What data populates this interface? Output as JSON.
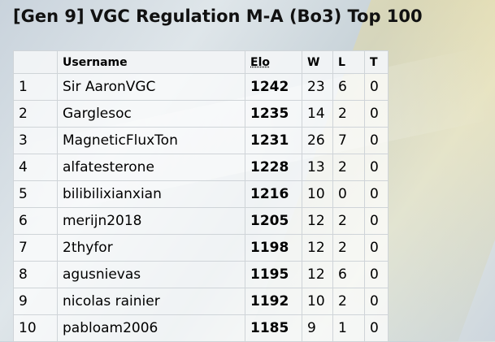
{
  "header": {
    "title": "[Gen 9] VGC Regulation M-A (Bo3) Top 100"
  },
  "table": {
    "columns": [
      "Username",
      "Elo",
      "W",
      "L",
      "T"
    ],
    "rows": [
      [
        1,
        "Sir AaronVGC",
        1242,
        23,
        6,
        0
      ],
      [
        2,
        "Garglesoc",
        1235,
        14,
        2,
        0
      ],
      [
        3,
        "MagneticFluxTon",
        1231,
        26,
        7,
        0
      ],
      [
        4,
        "alfatesterone",
        1228,
        13,
        2,
        0
      ],
      [
        5,
        "bilibilixianxian",
        1216,
        10,
        0,
        0
      ],
      [
        6,
        "merijn2018",
        1205,
        12,
        2,
        0
      ],
      [
        7,
        "2thyfor",
        1198,
        12,
        2,
        0
      ],
      [
        8,
        "agusnievas",
        1195,
        12,
        6,
        0
      ],
      [
        9,
        "nicolas rainier",
        1192,
        10,
        2,
        0
      ],
      [
        10,
        "pabloam2006",
        1185,
        9,
        1,
        0
      ]
    ]
  }
}
